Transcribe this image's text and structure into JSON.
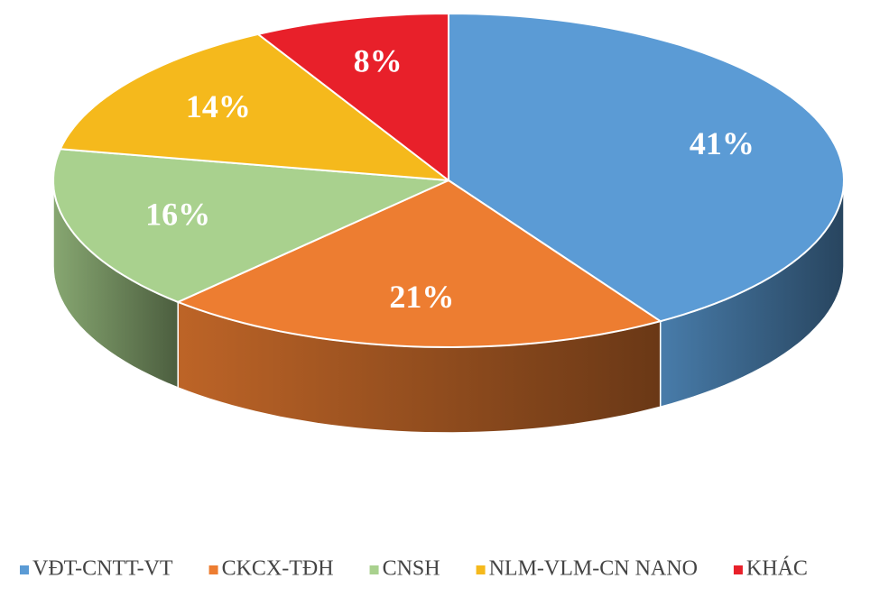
{
  "chart_data": {
    "type": "pie3d",
    "categories": [
      "VĐT-CNTT-VT",
      "CKCX-TĐH",
      "CNSH",
      "NLM-VLM-CN NANO",
      "KHÁC"
    ],
    "values": [
      41,
      21,
      16,
      14,
      8
    ],
    "value_labels": [
      "41%",
      "21%",
      "16%",
      "14%",
      "8%"
    ],
    "colors": [
      "#5b9bd5",
      "#ed7d31",
      "#a9d18e",
      "#f5b91c",
      "#e8202a"
    ],
    "legend": "bottom"
  }
}
